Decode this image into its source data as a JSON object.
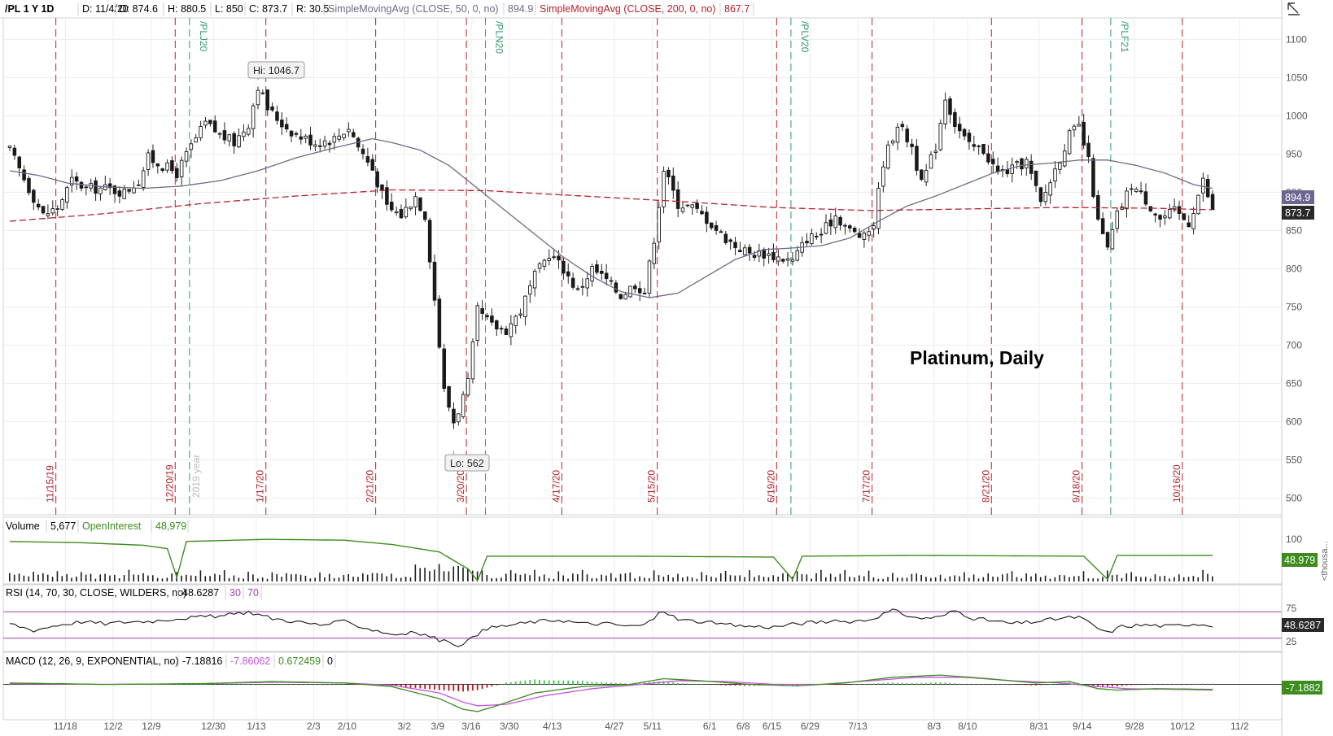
{
  "header": {
    "symbol": "/PL 1 Y 1D",
    "date": "D: 11/4/20",
    "open": "O: 874.6",
    "high": "H: 880.5",
    "low": "L: 850",
    "close": "C: 873.7",
    "range": "R: 30.5",
    "sma50_label": "SimpleMovingAvg (CLOSE, 50, 0, no)",
    "sma50_value": "894.9",
    "sma200_label": "SimpleMovingAvg (CLOSE, 200, 0, no)",
    "sma200_value": "867.7"
  },
  "price_badges": {
    "sma50": "894.9",
    "close": "873.7"
  },
  "annotations": {
    "title": "Platinum, Daily",
    "hi": "Hi: 1046.7",
    "lo": "Lo: 562",
    "year_marker": "2019 year"
  },
  "volume_panel": {
    "title": "Volume",
    "volume": "5,677",
    "oi_label": "OpenInterest",
    "oi_value": "48,979",
    "badge": "48.979",
    "unit": "<thousa..."
  },
  "rsi_panel": {
    "title": "RSI (14, 70, 30, CLOSE, WILDERS, no)",
    "value": "48.6287",
    "low": "30",
    "high": "70",
    "badge": "48.6287"
  },
  "macd_panel": {
    "title": "MACD (12, 26, 9, EXPONENTIAL, no)",
    "value": "-7.18816",
    "avg": "-7.86062",
    "diff": "0.672459",
    "zero": "0",
    "badge": "-7.1882"
  },
  "colors": {
    "up": "#1a1a1a",
    "sma50": "#6e6a86",
    "sma200": "#b4222b",
    "expiry": "#2e9b6c",
    "monthly": "#b4222b",
    "oi": "#3c8c1e",
    "rsi_band": "#a23fb0",
    "macd_avg": "#c653e0",
    "macd_val": "#3c8c1e",
    "hist_up": "#41c64a",
    "hist_dn": "#c0141d"
  },
  "chart_data": {
    "type": "candlestick",
    "y_ticks": [
      500,
      550,
      600,
      650,
      700,
      750,
      800,
      850,
      900,
      950,
      1000,
      1050,
      1100
    ],
    "y_tick_labels": [
      "500",
      "550",
      "600",
      "650",
      "700",
      "750",
      "800",
      "850",
      "900",
      "950",
      "1000",
      "1050",
      "1100"
    ],
    "ylim": [
      478,
      1128
    ],
    "bar_count": 253,
    "x_ticks": [
      {
        "i": 12,
        "label": "11/18"
      },
      {
        "i": 22,
        "label": "12/2"
      },
      {
        "i": 30,
        "label": "12/9"
      },
      {
        "i": 43,
        "label": "12/30"
      },
      {
        "i": 52,
        "label": "1/13"
      },
      {
        "i": 64,
        "label": "2/3"
      },
      {
        "i": 71,
        "label": "2/10"
      },
      {
        "i": 83,
        "label": "3/2"
      },
      {
        "i": 90,
        "label": "3/9"
      },
      {
        "i": 97,
        "label": "3/16"
      },
      {
        "i": 105,
        "label": "3/30"
      },
      {
        "i": 114,
        "label": "4/13"
      },
      {
        "i": 127,
        "label": "4/27"
      },
      {
        "i": 135,
        "label": "5/11"
      },
      {
        "i": 147,
        "label": "6/1"
      },
      {
        "i": 154,
        "label": "6/8"
      },
      {
        "i": 160,
        "label": "6/15"
      },
      {
        "i": 168,
        "label": "6/29"
      },
      {
        "i": 178,
        "label": "7/13"
      },
      {
        "i": 194,
        "label": "8/3"
      },
      {
        "i": 201,
        "label": "8/10"
      },
      {
        "i": 216,
        "label": "8/31"
      },
      {
        "i": 225,
        "label": "9/14"
      },
      {
        "i": 236,
        "label": "9/28"
      },
      {
        "i": 246,
        "label": "10/12"
      },
      {
        "i": 258,
        "label": "11/2"
      }
    ],
    "monthly_expiry": [
      {
        "i": 10,
        "label": "11/15/19"
      },
      {
        "i": 35,
        "label": "12/20/19"
      },
      {
        "i": 54,
        "label": "1/17/20"
      },
      {
        "i": 77,
        "label": "2/21/20"
      },
      {
        "i": 96,
        "label": "3/20/20"
      },
      {
        "i": 116,
        "label": "4/17/20"
      },
      {
        "i": 136,
        "label": "5/15/20"
      },
      {
        "i": 161,
        "label": "6/19/20"
      },
      {
        "i": 181,
        "label": "7/17/20"
      },
      {
        "i": 206,
        "label": "8/21/20"
      },
      {
        "i": 225,
        "label": "9/18/20"
      },
      {
        "i": 246,
        "label": "10/16/20"
      }
    ],
    "contract_rolls": [
      {
        "i": 38,
        "label": "/PLJ20"
      },
      {
        "i": 100,
        "label": "/PLN20"
      },
      {
        "i": 164,
        "label": "/PLV20"
      },
      {
        "i": 231,
        "label": "/PLF21"
      }
    ],
    "close_anchors": [
      [
        0,
        955
      ],
      [
        4,
        905
      ],
      [
        7,
        870
      ],
      [
        10,
        880
      ],
      [
        13,
        915
      ],
      [
        16,
        905
      ],
      [
        20,
        905
      ],
      [
        24,
        900
      ],
      [
        27,
        915
      ],
      [
        29,
        945
      ],
      [
        32,
        935
      ],
      [
        35,
        925
      ],
      [
        38,
        960
      ],
      [
        41,
        990
      ],
      [
        44,
        975
      ],
      [
        47,
        965
      ],
      [
        50,
        990
      ],
      [
        52,
        1040
      ],
      [
        54,
        1010
      ],
      [
        57,
        990
      ],
      [
        60,
        975
      ],
      [
        64,
        965
      ],
      [
        68,
        970
      ],
      [
        71,
        985
      ],
      [
        73,
        960
      ],
      [
        76,
        930
      ],
      [
        79,
        880
      ],
      [
        82,
        870
      ],
      [
        85,
        895
      ],
      [
        87,
        870
      ],
      [
        89,
        760
      ],
      [
        91,
        640
      ],
      [
        93,
        600
      ],
      [
        94,
        615
      ],
      [
        96,
        650
      ],
      [
        98,
        745
      ],
      [
        101,
        725
      ],
      [
        104,
        720
      ],
      [
        107,
        745
      ],
      [
        110,
        790
      ],
      [
        113,
        820
      ],
      [
        116,
        800
      ],
      [
        119,
        770
      ],
      [
        122,
        800
      ],
      [
        125,
        785
      ],
      [
        128,
        765
      ],
      [
        131,
        780
      ],
      [
        133,
        770
      ],
      [
        135,
        840
      ],
      [
        137,
        930
      ],
      [
        140,
        885
      ],
      [
        143,
        880
      ],
      [
        146,
        865
      ],
      [
        149,
        845
      ],
      [
        152,
        830
      ],
      [
        155,
        820
      ],
      [
        158,
        820
      ],
      [
        161,
        815
      ],
      [
        164,
        810
      ],
      [
        167,
        840
      ],
      [
        170,
        845
      ],
      [
        173,
        870
      ],
      [
        176,
        850
      ],
      [
        179,
        840
      ],
      [
        181,
        860
      ],
      [
        183,
        940
      ],
      [
        186,
        990
      ],
      [
        189,
        960
      ],
      [
        191,
        910
      ],
      [
        194,
        960
      ],
      [
        196,
        1025
      ],
      [
        198,
        990
      ],
      [
        201,
        960
      ],
      [
        204,
        955
      ],
      [
        207,
        925
      ],
      [
        210,
        930
      ],
      [
        213,
        940
      ],
      [
        216,
        885
      ],
      [
        219,
        930
      ],
      [
        222,
        975
      ],
      [
        224,
        985
      ],
      [
        226,
        940
      ],
      [
        228,
        860
      ],
      [
        230,
        825
      ],
      [
        232,
        870
      ],
      [
        235,
        910
      ],
      [
        238,
        890
      ],
      [
        241,
        865
      ],
      [
        244,
        875
      ],
      [
        247,
        860
      ],
      [
        250,
        915
      ],
      [
        252,
        875
      ]
    ],
    "sma50_anchors": [
      [
        0,
        928
      ],
      [
        6,
        922
      ],
      [
        12,
        912
      ],
      [
        20,
        907
      ],
      [
        28,
        905
      ],
      [
        36,
        908
      ],
      [
        44,
        915
      ],
      [
        52,
        928
      ],
      [
        60,
        945
      ],
      [
        68,
        958
      ],
      [
        76,
        970
      ],
      [
        80,
        965
      ],
      [
        86,
        955
      ],
      [
        92,
        935
      ],
      [
        98,
        905
      ],
      [
        104,
        875
      ],
      [
        110,
        845
      ],
      [
        116,
        815
      ],
      [
        122,
        790
      ],
      [
        128,
        770
      ],
      [
        134,
        762
      ],
      [
        140,
        768
      ],
      [
        146,
        790
      ],
      [
        152,
        812
      ],
      [
        158,
        825
      ],
      [
        164,
        827
      ],
      [
        170,
        830
      ],
      [
        176,
        840
      ],
      [
        182,
        862
      ],
      [
        188,
        882
      ],
      [
        194,
        895
      ],
      [
        200,
        910
      ],
      [
        206,
        925
      ],
      [
        212,
        935
      ],
      [
        218,
        938
      ],
      [
        224,
        942
      ],
      [
        230,
        942
      ],
      [
        236,
        935
      ],
      [
        242,
        925
      ],
      [
        248,
        910
      ],
      [
        252,
        905
      ]
    ],
    "sma200_anchors": [
      [
        0,
        862
      ],
      [
        20,
        872
      ],
      [
        40,
        885
      ],
      [
        60,
        895
      ],
      [
        80,
        903
      ],
      [
        100,
        902
      ],
      [
        120,
        895
      ],
      [
        140,
        888
      ],
      [
        160,
        880
      ],
      [
        180,
        876
      ],
      [
        200,
        878
      ],
      [
        220,
        880
      ],
      [
        240,
        879
      ],
      [
        252,
        877
      ]
    ],
    "volume": {
      "ylim": [
        0,
        110
      ],
      "tick": 100,
      "oi_anchors": [
        [
          0,
          95
        ],
        [
          15,
          92
        ],
        [
          28,
          86
        ],
        [
          33,
          78
        ],
        [
          35,
          10
        ],
        [
          37,
          95
        ],
        [
          54,
          100
        ],
        [
          70,
          98
        ],
        [
          80,
          88
        ],
        [
          90,
          70
        ],
        [
          96,
          30
        ],
        [
          98,
          2
        ],
        [
          100,
          60
        ],
        [
          130,
          60
        ],
        [
          160,
          58
        ],
        [
          164,
          5
        ],
        [
          166,
          60
        ],
        [
          190,
          62
        ],
        [
          225,
          60
        ],
        [
          230,
          5
        ],
        [
          232,
          62
        ],
        [
          252,
          62
        ]
      ]
    },
    "rsi": {
      "ylim": [
        15,
        85
      ],
      "ticks": [
        25,
        75
      ],
      "bands": [
        30,
        70
      ],
      "anchors": [
        [
          0,
          52
        ],
        [
          5,
          42
        ],
        [
          10,
          50
        ],
        [
          15,
          55
        ],
        [
          20,
          52
        ],
        [
          25,
          55
        ],
        [
          30,
          56
        ],
        [
          35,
          60
        ],
        [
          40,
          62
        ],
        [
          45,
          64
        ],
        [
          50,
          70
        ],
        [
          55,
          60
        ],
        [
          60,
          55
        ],
        [
          65,
          50
        ],
        [
          70,
          55
        ],
        [
          75,
          45
        ],
        [
          80,
          36
        ],
        [
          85,
          38
        ],
        [
          88,
          33
        ],
        [
          91,
          25
        ],
        [
          94,
          20
        ],
        [
          97,
          30
        ],
        [
          100,
          45
        ],
        [
          105,
          50
        ],
        [
          110,
          55
        ],
        [
          115,
          58
        ],
        [
          120,
          52
        ],
        [
          125,
          52
        ],
        [
          130,
          48
        ],
        [
          133,
          50
        ],
        [
          137,
          72
        ],
        [
          140,
          58
        ],
        [
          145,
          55
        ],
        [
          150,
          50
        ],
        [
          155,
          48
        ],
        [
          160,
          47
        ],
        [
          165,
          52
        ],
        [
          170,
          55
        ],
        [
          175,
          55
        ],
        [
          180,
          58
        ],
        [
          185,
          72
        ],
        [
          190,
          60
        ],
        [
          195,
          62
        ],
        [
          198,
          72
        ],
        [
          202,
          60
        ],
        [
          210,
          52
        ],
        [
          215,
          55
        ],
        [
          220,
          60
        ],
        [
          224,
          62
        ],
        [
          228,
          45
        ],
        [
          230,
          38
        ],
        [
          233,
          48
        ],
        [
          238,
          50
        ],
        [
          243,
          48
        ],
        [
          248,
          52
        ],
        [
          252,
          50
        ]
      ]
    },
    "macd": {
      "ylim": [
        -45,
        20
      ],
      "zero": 0,
      "val_anchors": [
        [
          0,
          2
        ],
        [
          20,
          0
        ],
        [
          40,
          1
        ],
        [
          55,
          4
        ],
        [
          70,
          2
        ],
        [
          80,
          -3
        ],
        [
          90,
          -20
        ],
        [
          95,
          -35
        ],
        [
          98,
          -38
        ],
        [
          102,
          -30
        ],
        [
          110,
          -12
        ],
        [
          120,
          -3
        ],
        [
          130,
          0
        ],
        [
          137,
          8
        ],
        [
          145,
          5
        ],
        [
          155,
          0
        ],
        [
          165,
          -2
        ],
        [
          175,
          2
        ],
        [
          185,
          10
        ],
        [
          195,
          13
        ],
        [
          205,
          8
        ],
        [
          215,
          2
        ],
        [
          222,
          4
        ],
        [
          228,
          -6
        ],
        [
          232,
          -8
        ],
        [
          240,
          -6
        ],
        [
          252,
          -7
        ]
      ],
      "avg_anchors": [
        [
          0,
          1
        ],
        [
          20,
          0
        ],
        [
          40,
          1
        ],
        [
          55,
          3
        ],
        [
          70,
          2
        ],
        [
          80,
          -1
        ],
        [
          90,
          -12
        ],
        [
          95,
          -25
        ],
        [
          98,
          -30
        ],
        [
          104,
          -28
        ],
        [
          112,
          -16
        ],
        [
          122,
          -6
        ],
        [
          132,
          0
        ],
        [
          140,
          5
        ],
        [
          150,
          4
        ],
        [
          160,
          0
        ],
        [
          170,
          0
        ],
        [
          180,
          5
        ],
        [
          190,
          10
        ],
        [
          200,
          10
        ],
        [
          210,
          5
        ],
        [
          220,
          2
        ],
        [
          228,
          -3
        ],
        [
          234,
          -6
        ],
        [
          244,
          -7
        ],
        [
          252,
          -8
        ]
      ]
    }
  }
}
